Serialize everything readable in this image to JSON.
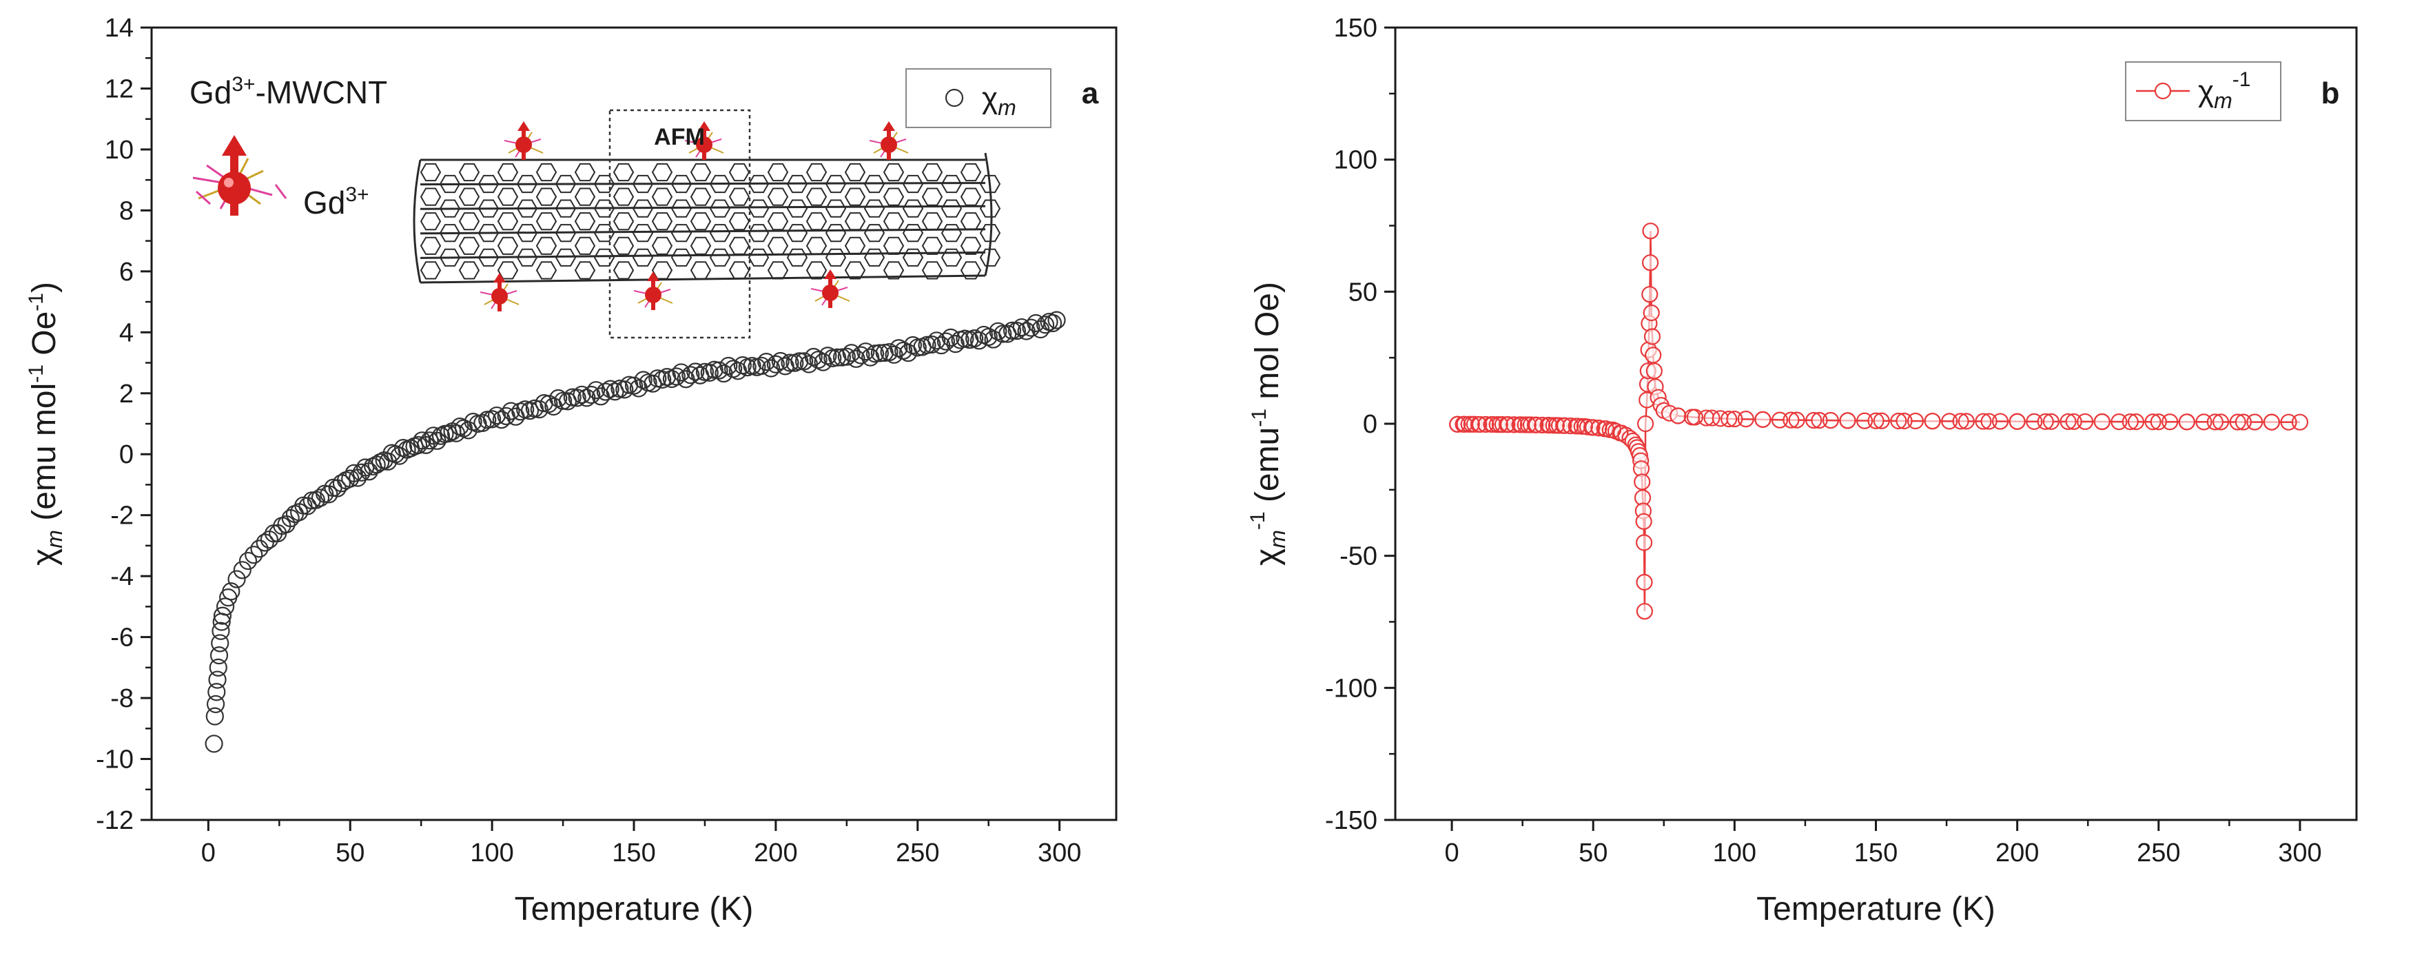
{
  "colors": {
    "axis": "#1a1a1a",
    "series_a": "#333333",
    "series_b": "#e8393b",
    "spin": "#d62020",
    "ligand_pink": "#e0409a",
    "ligand_gold": "#c9a227",
    "tube": "#2a2a2a"
  },
  "chart_data": [
    {
      "panel": "a",
      "type": "scatter",
      "xlabel": "Temperature (K)",
      "ylabel": {
        "main": "χ",
        "sub": "m",
        "units_pre": " (emu mol",
        "units_sup": "-1",
        "units_post": " Oe",
        "units_sup2": "-1",
        "units_close": ")"
      },
      "xlim": [
        -20,
        320
      ],
      "ylim": [
        -12,
        14
      ],
      "xticks": [
        0,
        50,
        100,
        150,
        200,
        250,
        300
      ],
      "yticks": [
        -12,
        -10,
        -8,
        -6,
        -4,
        -2,
        0,
        2,
        4,
        6,
        8,
        10,
        12,
        14
      ],
      "legend": {
        "symbol": "open-circle",
        "main": "χ",
        "sub": "m",
        "placement": "top-right"
      },
      "panel_label": "a",
      "annotations": {
        "sample": {
          "pre": "Gd",
          "sup": "3+",
          "post": "-MWCNT"
        },
        "ion": {
          "pre": "Gd",
          "sup": "3+"
        },
        "region": "AFM"
      },
      "series": [
        {
          "name": "χm",
          "points": [
            [
              2,
              -9.5
            ],
            [
              2.3,
              -8.6
            ],
            [
              2.6,
              -8.2
            ],
            [
              2.9,
              -7.8
            ],
            [
              3.2,
              -7.4
            ],
            [
              3.5,
              -7.0
            ],
            [
              3.8,
              -6.6
            ],
            [
              4.1,
              -6.2
            ],
            [
              4.4,
              -5.8
            ],
            [
              4.7,
              -5.5
            ],
            [
              5,
              -5.3
            ],
            [
              6,
              -5.0
            ],
            [
              7,
              -4.7
            ],
            [
              8,
              -4.5
            ],
            [
              10,
              -4.1
            ],
            [
              12,
              -3.8
            ],
            [
              14,
              -3.5
            ],
            [
              16,
              -3.3
            ],
            [
              18,
              -3.1
            ],
            [
              20,
              -2.9
            ],
            [
              23,
              -2.6
            ],
            [
              26,
              -2.35
            ],
            [
              29,
              -2.1
            ],
            [
              32,
              -1.9
            ],
            [
              35,
              -1.7
            ],
            [
              38,
              -1.5
            ],
            [
              41,
              -1.3
            ],
            [
              44,
              -1.1
            ],
            [
              47,
              -0.95
            ],
            [
              50,
              -0.8
            ],
            [
              54,
              -0.6
            ],
            [
              58,
              -0.4
            ],
            [
              62,
              -0.2
            ],
            [
              66,
              0.0
            ],
            [
              70,
              0.15
            ],
            [
              74,
              0.3
            ],
            [
              78,
              0.45
            ],
            [
              82,
              0.6
            ],
            [
              86,
              0.75
            ],
            [
              90,
              0.85
            ],
            [
              95,
              1.0
            ],
            [
              100,
              1.15
            ],
            [
              105,
              1.25
            ],
            [
              110,
              1.4
            ],
            [
              115,
              1.5
            ],
            [
              120,
              1.65
            ],
            [
              125,
              1.75
            ],
            [
              130,
              1.85
            ],
            [
              135,
              1.95
            ],
            [
              140,
              2.05
            ],
            [
              145,
              2.15
            ],
            [
              150,
              2.25
            ],
            [
              155,
              2.35
            ],
            [
              160,
              2.45
            ],
            [
              165,
              2.55
            ],
            [
              170,
              2.6
            ],
            [
              175,
              2.7
            ],
            [
              180,
              2.75
            ],
            [
              185,
              2.8
            ],
            [
              190,
              2.85
            ],
            [
              195,
              2.9
            ],
            [
              200,
              2.95
            ],
            [
              205,
              3.0
            ],
            [
              210,
              3.05
            ],
            [
              215,
              3.1
            ],
            [
              220,
              3.15
            ],
            [
              225,
              3.2
            ],
            [
              230,
              3.25
            ],
            [
              235,
              3.3
            ],
            [
              240,
              3.35
            ],
            [
              245,
              3.4
            ],
            [
              250,
              3.5
            ],
            [
              255,
              3.6
            ],
            [
              260,
              3.7
            ],
            [
              265,
              3.75
            ],
            [
              270,
              3.8
            ],
            [
              275,
              3.85
            ],
            [
              280,
              3.95
            ],
            [
              285,
              4.05
            ],
            [
              290,
              4.15
            ],
            [
              295,
              4.25
            ],
            [
              299,
              4.4
            ]
          ]
        }
      ]
    },
    {
      "panel": "b",
      "type": "line",
      "xlabel": "Temperature (K)",
      "ylabel": {
        "main": "χ",
        "sub": "m",
        "sup": "-1",
        "units_pre": " (emu",
        "units_sup": "-1",
        "units_post": " mol Oe)"
      },
      "xlim": [
        -20,
        320
      ],
      "ylim": [
        -150,
        150
      ],
      "xticks": [
        0,
        50,
        100,
        150,
        200,
        250,
        300
      ],
      "yticks": [
        -150,
        -100,
        -50,
        0,
        50,
        100,
        150
      ],
      "legend": {
        "symbol": "line-open-circle",
        "main": "χ",
        "sub": "m",
        "sup": "-1",
        "placement": "top-right"
      },
      "panel_label": "b",
      "series": [
        {
          "name": "χm-1",
          "points": [
            [
              2,
              -0.2
            ],
            [
              4,
              -0.2
            ],
            [
              6,
              -0.2
            ],
            [
              8,
              -0.2
            ],
            [
              10,
              -0.25
            ],
            [
              12,
              -0.25
            ],
            [
              14,
              -0.25
            ],
            [
              16,
              -0.3
            ],
            [
              18,
              -0.3
            ],
            [
              20,
              -0.3
            ],
            [
              22,
              -0.35
            ],
            [
              24,
              -0.35
            ],
            [
              26,
              -0.4
            ],
            [
              28,
              -0.4
            ],
            [
              30,
              -0.45
            ],
            [
              32,
              -0.5
            ],
            [
              34,
              -0.55
            ],
            [
              36,
              -0.6
            ],
            [
              38,
              -0.65
            ],
            [
              40,
              -0.7
            ],
            [
              42,
              -0.8
            ],
            [
              44,
              -0.9
            ],
            [
              46,
              -1.0
            ],
            [
              48,
              -1.2
            ],
            [
              50,
              -1.4
            ],
            [
              52,
              -1.6
            ],
            [
              54,
              -1.9
            ],
            [
              56,
              -2.3
            ],
            [
              58,
              -2.8
            ],
            [
              60,
              -3.5
            ],
            [
              61.5,
              -4.3
            ],
            [
              63,
              -5.5
            ],
            [
              64,
              -6.5
            ],
            [
              65,
              -8
            ],
            [
              65.5,
              -9
            ],
            [
              66,
              -10.5
            ],
            [
              66.5,
              -12
            ],
            [
              66.8,
              -14
            ],
            [
              67,
              -17
            ],
            [
              67.3,
              -22
            ],
            [
              67.5,
              -28
            ],
            [
              67.7,
              -33
            ],
            [
              67.9,
              -37
            ],
            [
              68,
              -45
            ],
            [
              68.1,
              -60
            ],
            [
              68.2,
              -71
            ],
            [
              68.5,
              0
            ],
            [
              69,
              9
            ],
            [
              69.2,
              15
            ],
            [
              69.4,
              20
            ],
            [
              69.6,
              28
            ],
            [
              69.8,
              38
            ],
            [
              70,
              49
            ],
            [
              70.2,
              61
            ],
            [
              70.3,
              73
            ],
            [
              70.6,
              42
            ],
            [
              70.9,
              33
            ],
            [
              71.2,
              26
            ],
            [
              71.6,
              20
            ],
            [
              72,
              14
            ],
            [
              73,
              10
            ],
            [
              74,
              7
            ],
            [
              75,
              5
            ],
            [
              77,
              4
            ],
            [
              80,
              3
            ],
            [
              85,
              2.5
            ],
            [
              90,
              2.2
            ],
            [
              95,
              2.0
            ],
            [
              100,
              1.8
            ],
            [
              110,
              1.6
            ],
            [
              120,
              1.4
            ],
            [
              130,
              1.3
            ],
            [
              140,
              1.2
            ],
            [
              150,
              1.1
            ],
            [
              160,
              1.05
            ],
            [
              170,
              1.0
            ],
            [
              180,
              0.95
            ],
            [
              190,
              0.9
            ],
            [
              200,
              0.85
            ],
            [
              210,
              0.82
            ],
            [
              220,
              0.8
            ],
            [
              230,
              0.78
            ],
            [
              240,
              0.75
            ],
            [
              250,
              0.72
            ],
            [
              260,
              0.7
            ],
            [
              270,
              0.68
            ],
            [
              280,
              0.65
            ],
            [
              290,
              0.62
            ],
            [
              300,
              0.6
            ]
          ]
        }
      ]
    }
  ]
}
